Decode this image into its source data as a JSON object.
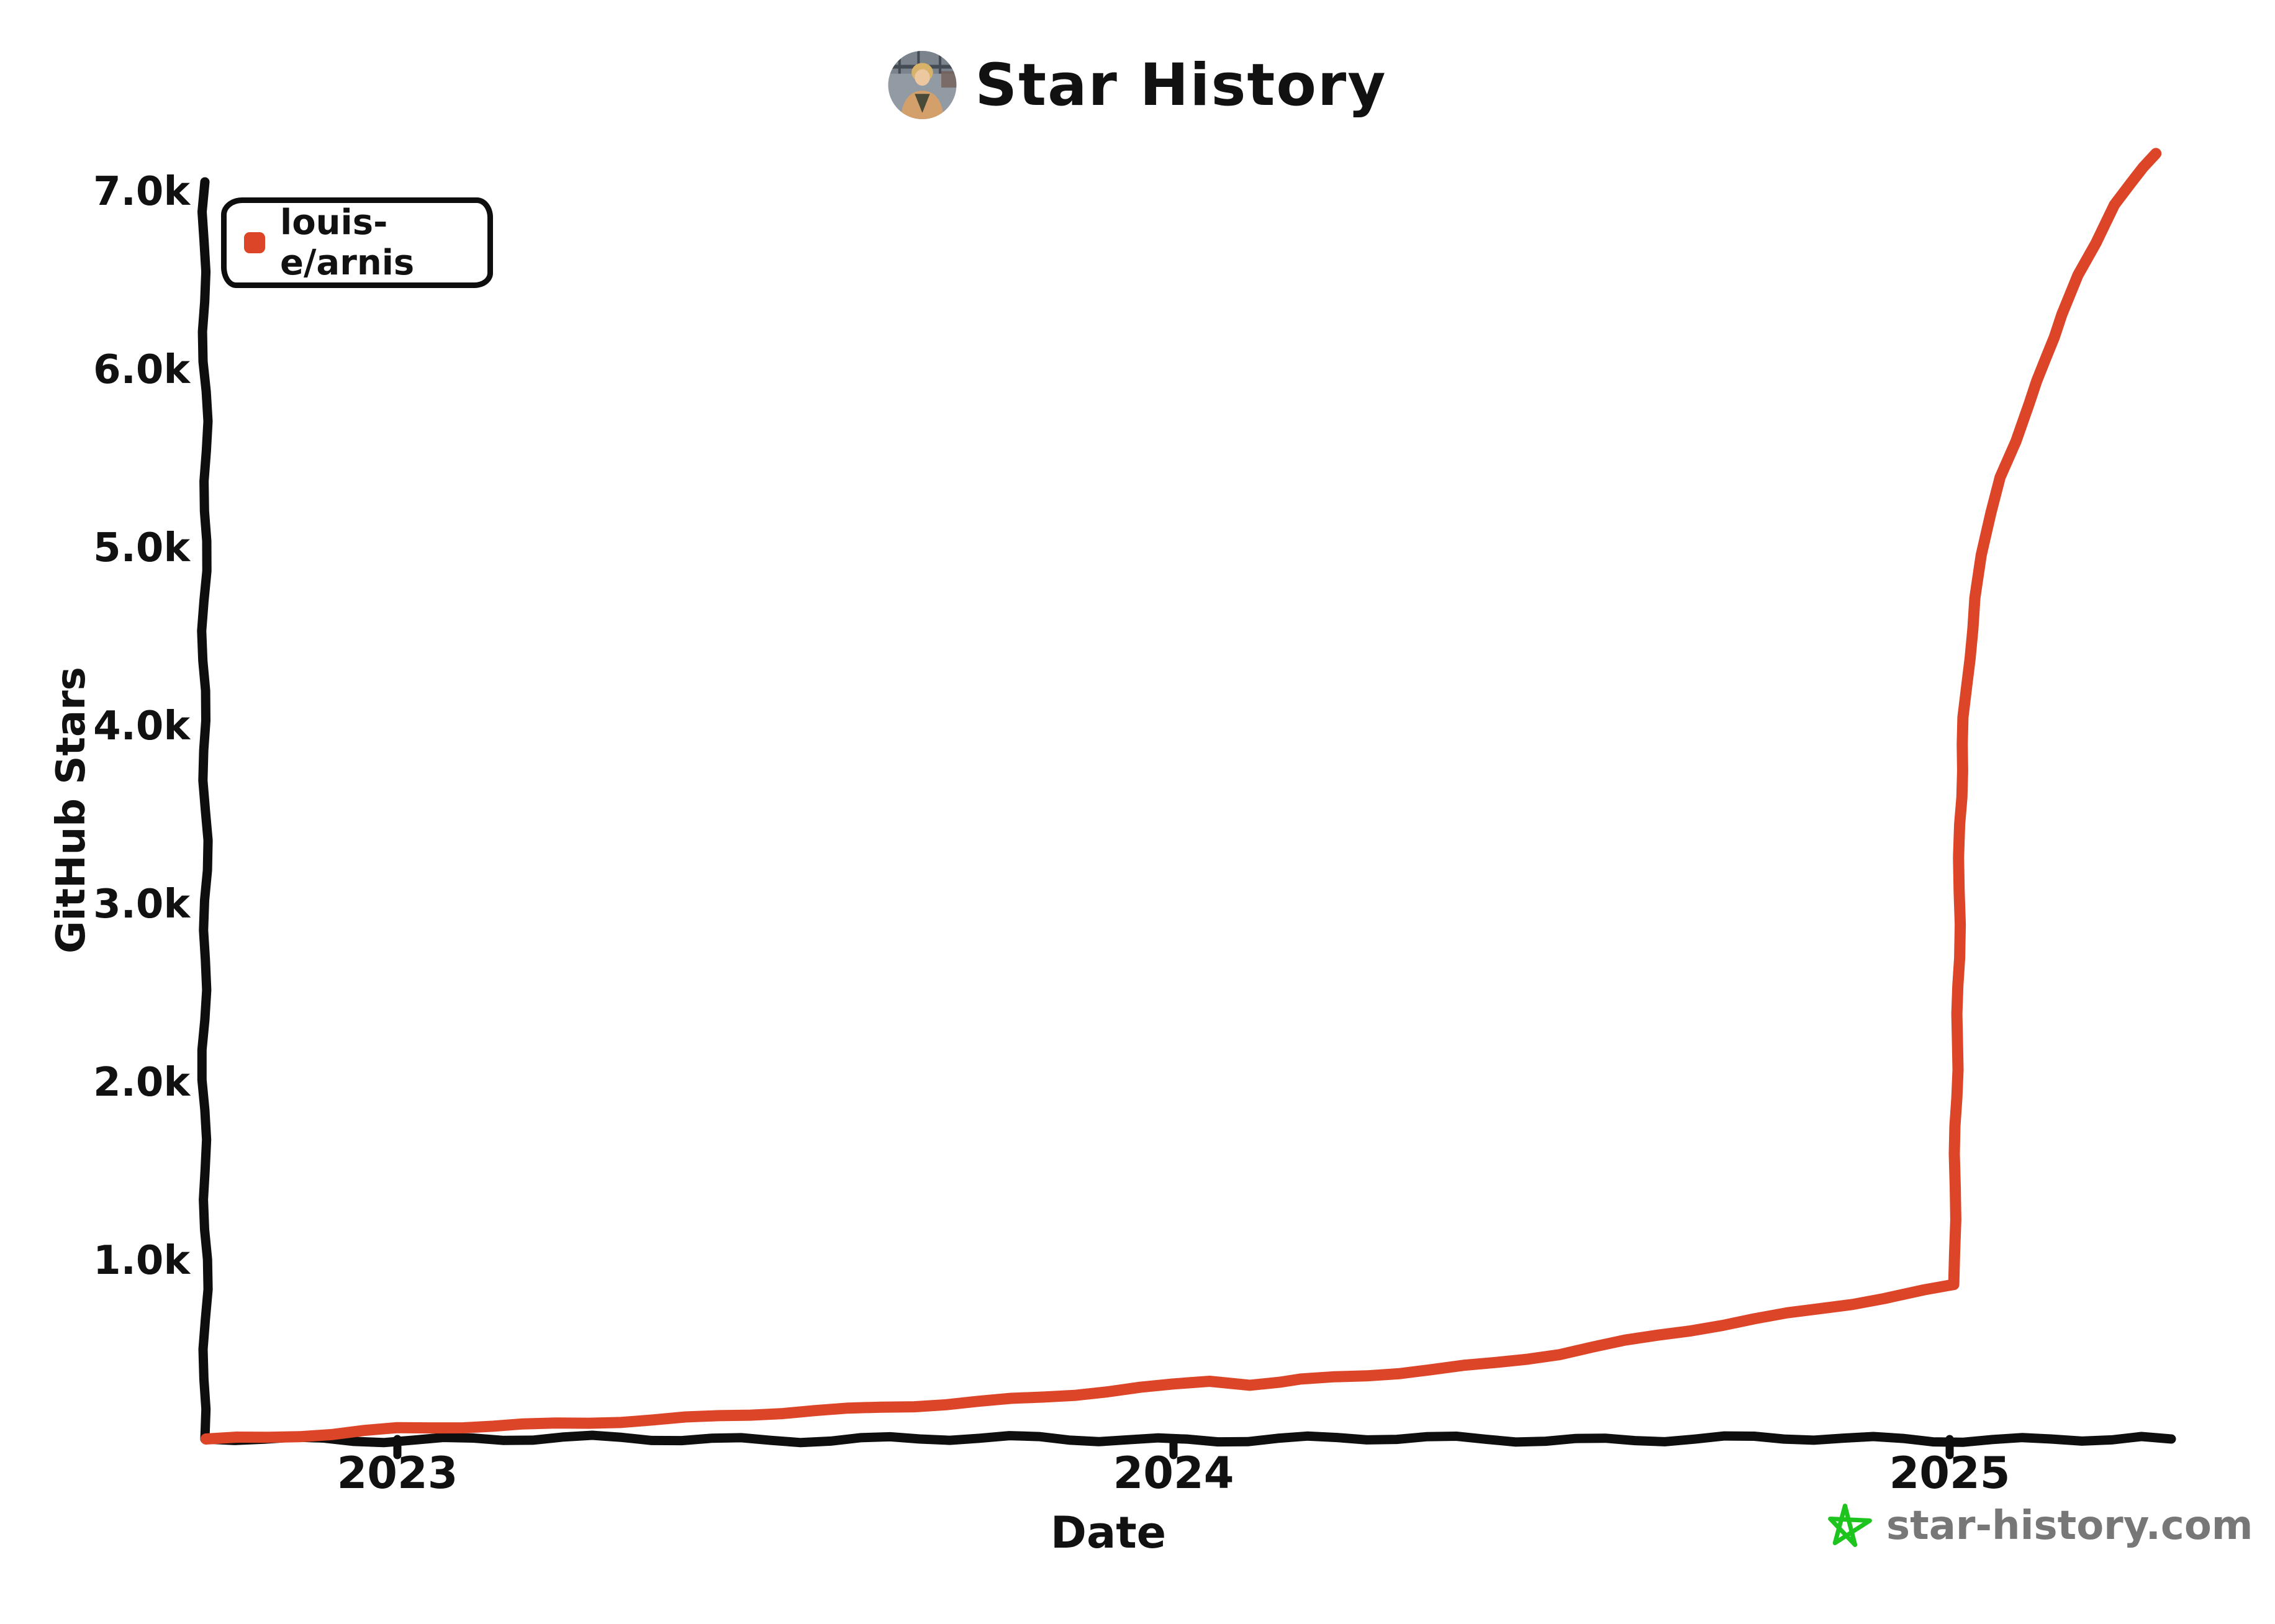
{
  "title": {
    "text": "Star History"
  },
  "legend": {
    "items": [
      {
        "label": "louis-e/arnis",
        "color": "#DD4528"
      }
    ]
  },
  "axes": {
    "y": {
      "label": "GitHub Stars",
      "ticks": [
        "1.0k",
        "2.0k",
        "3.0k",
        "4.0k",
        "5.0k",
        "6.0k",
        "7.0k"
      ]
    },
    "x": {
      "label": "Date",
      "ticks": [
        "2023",
        "2024",
        "2025"
      ]
    }
  },
  "watermark": {
    "text": "star-history.com",
    "text_color": "#777777",
    "star_color": "#1EC41E"
  },
  "colors": {
    "line": "#DD4528",
    "axis": "#0e0e0e",
    "background": "#ffffff"
  },
  "chart_data": {
    "type": "line",
    "title": "Star History",
    "xlabel": "Date",
    "ylabel": "GitHub Stars",
    "grid": false,
    "legend_position": "top-left",
    "x_ticks": [
      "2023-01-01",
      "2024-01-01",
      "2025-01-01"
    ],
    "x_tick_labels": [
      "2023",
      "2024",
      "2025"
    ],
    "x_range": [
      "2022-10-03",
      "2025-04-08"
    ],
    "y_ticks": [
      1000,
      2000,
      3000,
      4000,
      5000,
      6000,
      7000
    ],
    "y_tick_labels": [
      "1.0k",
      "2.0k",
      "3.0k",
      "4.0k",
      "5.0k",
      "6.0k",
      "7.0k"
    ],
    "ylim": [
      0,
      7260
    ],
    "series": [
      {
        "name": "louis-e/arnis",
        "color": "#DD4528",
        "points": [
          [
            "2022-10-03",
            0
          ],
          [
            "2022-11-01",
            8
          ],
          [
            "2022-12-01",
            25
          ],
          [
            "2023-01-01",
            55
          ],
          [
            "2023-02-01",
            70
          ],
          [
            "2023-03-01",
            82
          ],
          [
            "2023-04-01",
            95
          ],
          [
            "2023-05-01",
            108
          ],
          [
            "2023-06-01",
            125
          ],
          [
            "2023-07-01",
            145
          ],
          [
            "2023-08-01",
            165
          ],
          [
            "2023-09-01",
            188
          ],
          [
            "2023-10-01",
            212
          ],
          [
            "2023-11-01",
            238
          ],
          [
            "2023-12-01",
            268
          ],
          [
            "2024-01-01",
            300
          ],
          [
            "2024-01-18",
            322
          ],
          [
            "2024-02-06",
            305
          ],
          [
            "2024-02-20",
            318
          ],
          [
            "2024-03-01",
            330
          ],
          [
            "2024-04-01",
            360
          ],
          [
            "2024-05-01",
            392
          ],
          [
            "2024-06-01",
            428
          ],
          [
            "2024-07-01",
            478
          ],
          [
            "2024-08-01",
            545
          ],
          [
            "2024-09-01",
            610
          ],
          [
            "2024-10-01",
            672
          ],
          [
            "2024-11-01",
            735
          ],
          [
            "2024-12-01",
            795
          ],
          [
            "2024-12-20",
            835
          ],
          [
            "2025-01-03",
            862
          ],
          [
            "2025-01-04",
            1600
          ],
          [
            "2025-01-05",
            2700
          ],
          [
            "2025-01-06",
            3450
          ],
          [
            "2025-01-08",
            4050
          ],
          [
            "2025-01-10",
            4380
          ],
          [
            "2025-01-13",
            4720
          ],
          [
            "2025-01-16",
            4960
          ],
          [
            "2025-01-20",
            5200
          ],
          [
            "2025-01-24",
            5400
          ],
          [
            "2025-02-01",
            5600
          ],
          [
            "2025-02-08",
            5810
          ],
          [
            "2025-02-15",
            6060
          ],
          [
            "2025-02-23",
            6310
          ],
          [
            "2025-03-03",
            6530
          ],
          [
            "2025-03-11",
            6710
          ],
          [
            "2025-03-19",
            6930
          ],
          [
            "2025-03-27",
            7060
          ],
          [
            "2025-04-02",
            7140
          ],
          [
            "2025-04-08",
            7215
          ]
        ]
      }
    ]
  }
}
